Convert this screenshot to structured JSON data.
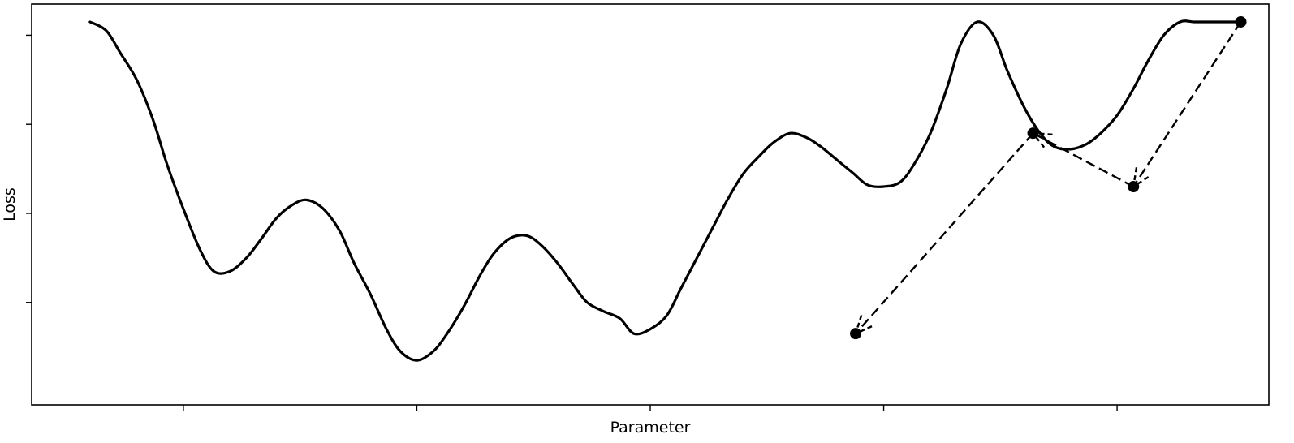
{
  "chart_data": {
    "type": "line",
    "xlabel": "Parameter",
    "ylabel": "Loss",
    "xlim": [
      -0.65,
      4.65
    ],
    "ylim": [
      -1.15,
      3.35
    ],
    "x_ticks": [
      0,
      1,
      2,
      3,
      4
    ],
    "y_ticks": [
      0,
      1,
      2,
      3
    ],
    "tick_labels_shown": false,
    "grid": false,
    "legend": "none",
    "series": [
      {
        "style": "solid",
        "color": "#000000",
        "x": [
          -0.4,
          -0.33,
          -0.27,
          -0.2,
          -0.13,
          -0.07,
          0.0,
          0.07,
          0.13,
          0.2,
          0.27,
          0.33,
          0.4,
          0.47,
          0.53,
          0.6,
          0.67,
          0.73,
          0.8,
          0.87,
          0.93,
          1.0,
          1.07,
          1.13,
          1.2,
          1.27,
          1.33,
          1.4,
          1.47,
          1.53,
          1.6,
          1.67,
          1.73,
          1.8,
          1.87,
          1.93,
          2.0,
          2.07,
          2.13,
          2.2,
          2.27,
          2.33,
          2.4,
          2.47,
          2.53,
          2.6,
          2.67,
          2.73,
          2.8,
          2.87,
          2.93,
          3.0,
          3.07,
          3.13,
          3.2,
          3.27,
          3.33,
          3.4,
          3.47,
          3.53,
          3.6,
          3.67,
          3.73,
          3.8,
          3.87,
          3.93,
          4.0,
          4.07,
          4.13,
          4.2,
          4.27,
          4.33,
          4.4,
          4.47,
          4.53
        ],
        "y": [
          3.15,
          3.05,
          2.8,
          2.5,
          2.05,
          1.55,
          1.05,
          0.6,
          0.35,
          0.35,
          0.5,
          0.7,
          0.95,
          1.1,
          1.15,
          1.05,
          0.8,
          0.45,
          0.1,
          -0.3,
          -0.55,
          -0.65,
          -0.55,
          -0.35,
          -0.05,
          0.3,
          0.55,
          0.72,
          0.75,
          0.65,
          0.45,
          0.2,
          0.0,
          -0.1,
          -0.18,
          -0.35,
          -0.3,
          -0.15,
          0.15,
          0.5,
          0.85,
          1.15,
          1.45,
          1.65,
          1.8,
          1.9,
          1.85,
          1.75,
          1.6,
          1.45,
          1.32,
          1.3,
          1.35,
          1.55,
          1.9,
          2.4,
          2.9,
          3.15,
          3.0,
          2.6,
          2.2,
          1.9,
          1.75,
          1.72,
          1.78,
          1.9,
          2.1,
          2.4,
          2.7,
          3.0,
          3.15,
          3.15,
          3.15,
          3.15,
          3.15
        ]
      }
    ],
    "optimizer_steps": {
      "x": [
        4.53,
        4.07,
        3.64,
        2.88
      ],
      "y": [
        3.15,
        1.3,
        1.9,
        -0.35
      ]
    }
  }
}
